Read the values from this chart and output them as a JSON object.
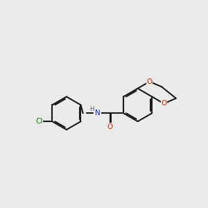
{
  "background_color": "#ebebeb",
  "bond_color": "#1a1a1a",
  "cl_color": "#008800",
  "n_color": "#2222ee",
  "o_color": "#dd2200",
  "h_color": "#555555",
  "lw": 1.5,
  "dbo": 0.07,
  "fig_w": 3.0,
  "fig_h": 3.0,
  "dpi": 100,
  "xlim": [
    -0.5,
    10.5
  ],
  "ylim": [
    2.5,
    7.5
  ],
  "font_size": 7.5
}
